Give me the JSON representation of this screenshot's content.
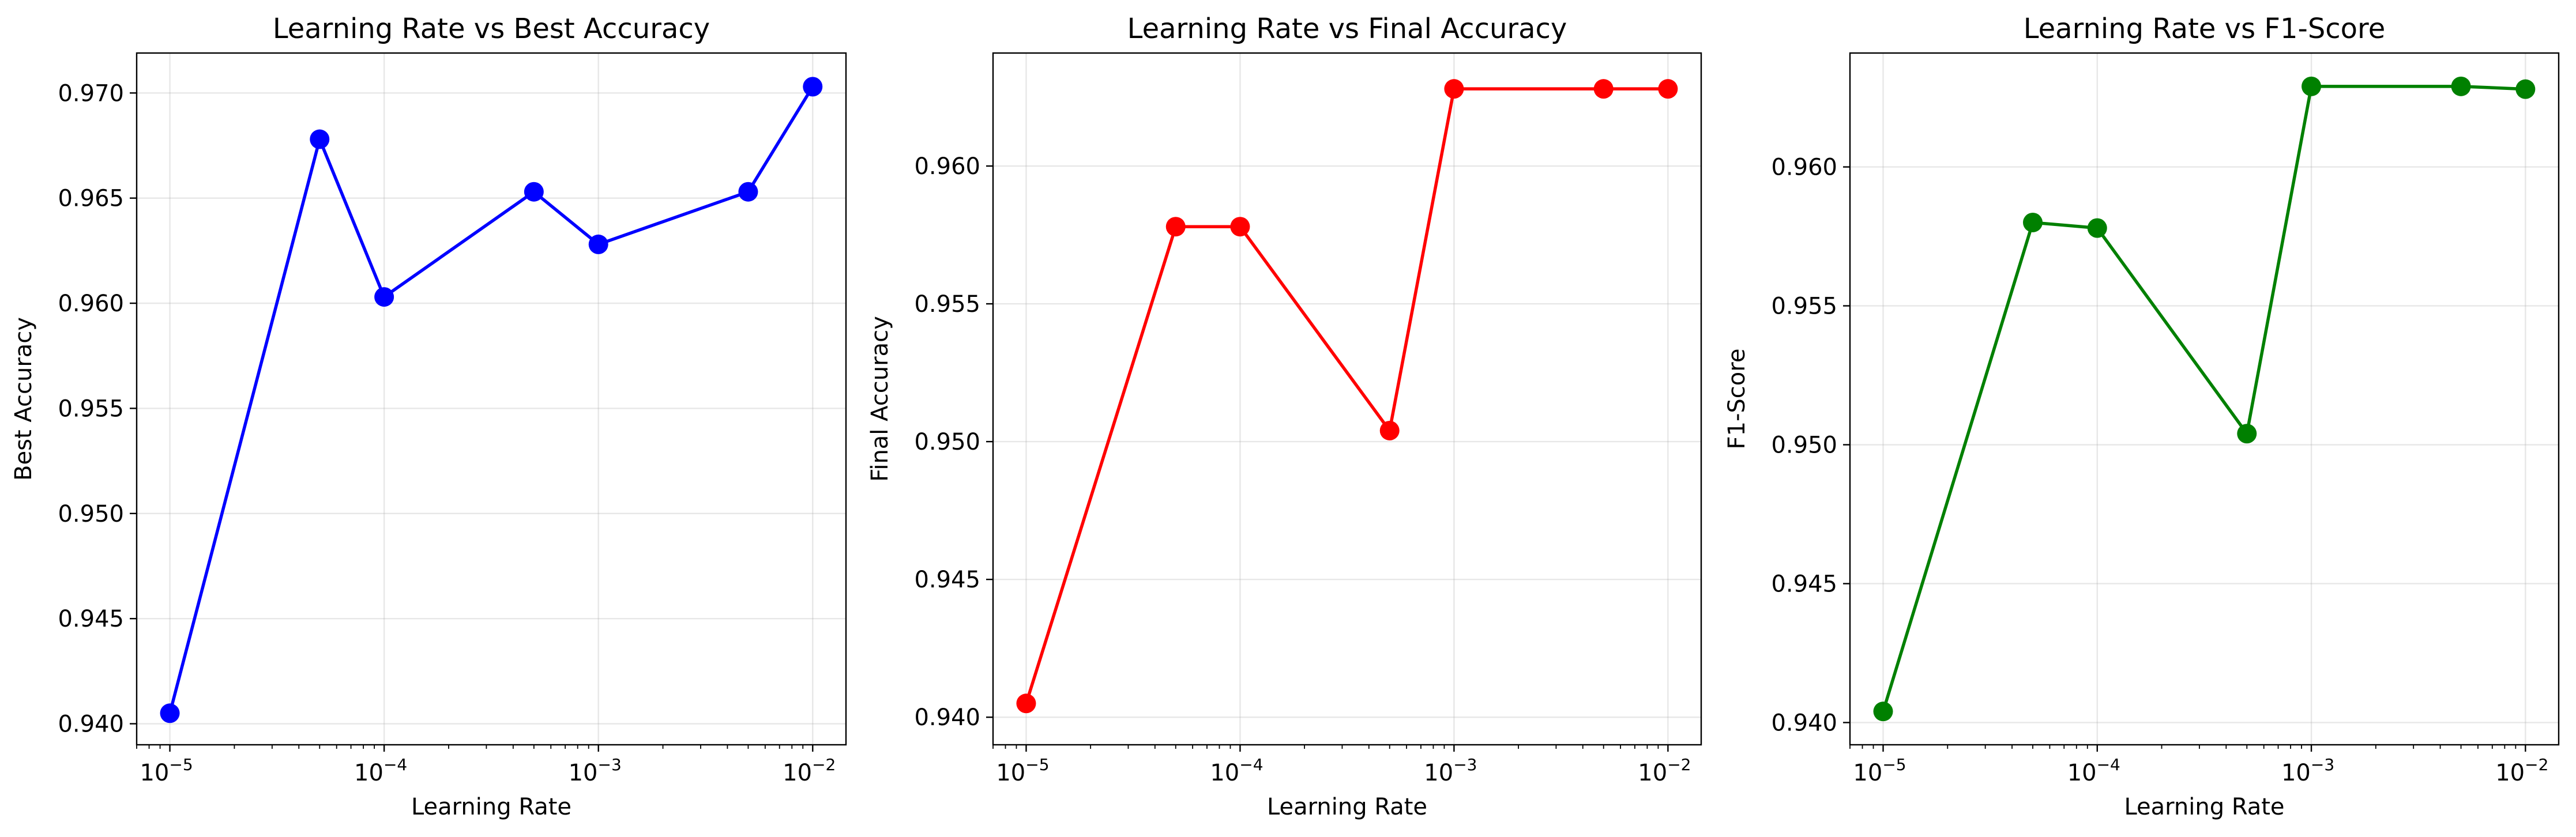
{
  "chart_data": [
    {
      "type": "line",
      "title": "Learning Rate vs Best Accuracy",
      "xlabel": "Learning Rate",
      "ylabel": "Best Accuracy",
      "xscale": "log",
      "xlim": [
        7e-06,
        0.0143
      ],
      "ylim": [
        0.939,
        0.9719
      ],
      "x": [
        1e-05,
        5e-05,
        0.0001,
        0.0005,
        0.001,
        0.005,
        0.01
      ],
      "y": [
        0.9405,
        0.9678,
        0.9603,
        0.9653,
        0.9628,
        0.9653,
        0.9703
      ],
      "xticks": [
        {
          "value": 1e-05,
          "base": "10",
          "exp": "−5"
        },
        {
          "value": 0.0001,
          "base": "10",
          "exp": "−4"
        },
        {
          "value": 0.001,
          "base": "10",
          "exp": "−3"
        },
        {
          "value": 0.01,
          "base": "10",
          "exp": "−2"
        }
      ],
      "yticks": [
        {
          "value": 0.94,
          "label": "0.940"
        },
        {
          "value": 0.945,
          "label": "0.945"
        },
        {
          "value": 0.95,
          "label": "0.950"
        },
        {
          "value": 0.955,
          "label": "0.955"
        },
        {
          "value": 0.96,
          "label": "0.960"
        },
        {
          "value": 0.965,
          "label": "0.965"
        },
        {
          "value": 0.97,
          "label": "0.970"
        }
      ],
      "color": "#0000ff",
      "grid": true,
      "marker": "circle"
    },
    {
      "type": "line",
      "title": "Learning Rate vs Final Accuracy",
      "xlabel": "Learning Rate",
      "ylabel": "Final Accuracy",
      "xscale": "log",
      "xlim": [
        7e-06,
        0.0143
      ],
      "ylim": [
        0.939,
        0.9641
      ],
      "x": [
        1e-05,
        5e-05,
        0.0001,
        0.0005,
        0.001,
        0.005,
        0.01
      ],
      "y": [
        0.9405,
        0.9578,
        0.9578,
        0.9504,
        0.9628,
        0.9628,
        0.9628
      ],
      "xticks": [
        {
          "value": 1e-05,
          "base": "10",
          "exp": "−5"
        },
        {
          "value": 0.0001,
          "base": "10",
          "exp": "−4"
        },
        {
          "value": 0.001,
          "base": "10",
          "exp": "−3"
        },
        {
          "value": 0.01,
          "base": "10",
          "exp": "−2"
        }
      ],
      "yticks": [
        {
          "value": 0.94,
          "label": "0.940"
        },
        {
          "value": 0.945,
          "label": "0.945"
        },
        {
          "value": 0.95,
          "label": "0.950"
        },
        {
          "value": 0.955,
          "label": "0.955"
        },
        {
          "value": 0.96,
          "label": "0.960"
        }
      ],
      "color": "#ff0000",
      "grid": true,
      "marker": "circle"
    },
    {
      "type": "line",
      "title": "Learning Rate vs F1-Score",
      "xlabel": "Learning Rate",
      "ylabel": "F1-Score",
      "xscale": "log",
      "xlim": [
        7e-06,
        0.0143
      ],
      "ylim": [
        0.9392,
        0.9641
      ],
      "x": [
        1e-05,
        5e-05,
        0.0001,
        0.0005,
        0.001,
        0.005,
        0.01
      ],
      "y": [
        0.9404,
        0.958,
        0.9578,
        0.9504,
        0.9629,
        0.9629,
        0.9628
      ],
      "xticks": [
        {
          "value": 1e-05,
          "base": "10",
          "exp": "−5"
        },
        {
          "value": 0.0001,
          "base": "10",
          "exp": "−4"
        },
        {
          "value": 0.001,
          "base": "10",
          "exp": "−3"
        },
        {
          "value": 0.01,
          "base": "10",
          "exp": "−2"
        }
      ],
      "yticks": [
        {
          "value": 0.94,
          "label": "0.940"
        },
        {
          "value": 0.945,
          "label": "0.945"
        },
        {
          "value": 0.95,
          "label": "0.950"
        },
        {
          "value": 0.955,
          "label": "0.955"
        },
        {
          "value": 0.96,
          "label": "0.960"
        }
      ],
      "color": "#008000",
      "grid": true,
      "marker": "circle"
    }
  ]
}
